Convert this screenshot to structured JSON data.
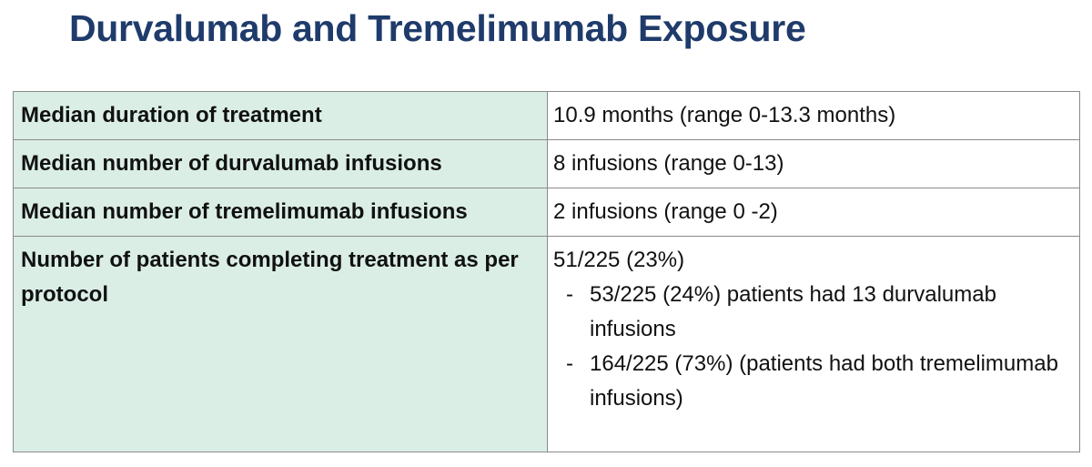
{
  "title": "Durvalumab and Tremelimumab Exposure",
  "rows": [
    {
      "label": "Median duration of treatment",
      "value": "10.9 months (range 0-13.3 months)"
    },
    {
      "label": "Median number of durvalumab infusions",
      "value": "8 infusions (range 0-13)"
    },
    {
      "label": "Median number of tremelimumab infusions",
      "value": "2 infusions (range 0 -2)"
    },
    {
      "label": "Number of patients completing treatment as per protocol",
      "value": "51/225 (23%)",
      "subitems": [
        {
          "bullet": "-",
          "text": "53/225 (24%) patients had 13 durvalumab infusions"
        },
        {
          "bullet": "-",
          "text": "164/225 (73%) (patients had both tremelimumab infusions)"
        }
      ]
    }
  ]
}
